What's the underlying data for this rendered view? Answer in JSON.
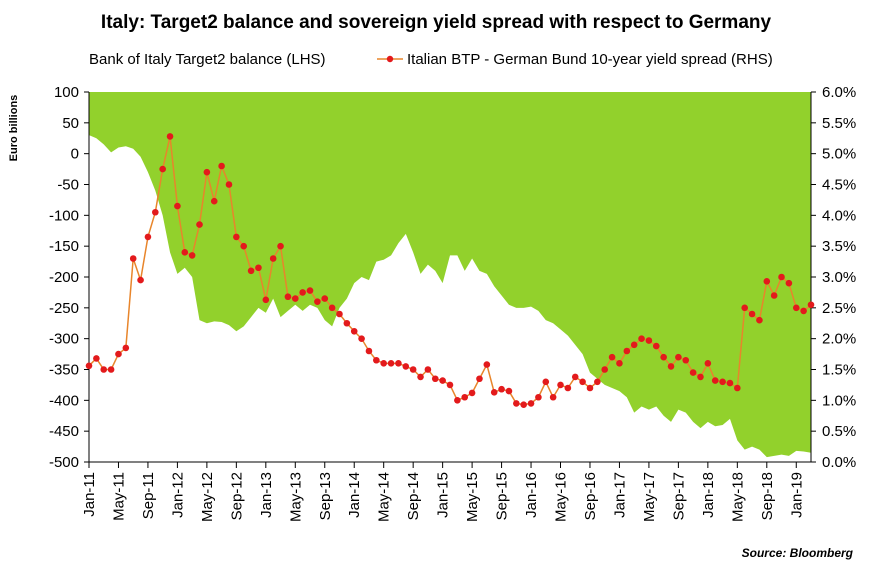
{
  "chart_data": {
    "type": "area+line",
    "title": "Italy: Target2 balance and sovereign yield spread with respect to Germany",
    "ylabel_left": "Euro billions",
    "ylabel_right": "",
    "source": "Source: Bloomberg",
    "left_axis": {
      "min": -500,
      "max": 100,
      "step": 50,
      "ticks": [
        "100",
        "50",
        "0",
        "-50",
        "-100",
        "-150",
        "-200",
        "-250",
        "-300",
        "-350",
        "-400",
        "-450",
        "-500"
      ]
    },
    "right_axis": {
      "min": 0,
      "max": 6,
      "step": 0.5,
      "ticks": [
        "6.0%",
        "5.5%",
        "5.0%",
        "4.5%",
        "4.0%",
        "3.5%",
        "3.0%",
        "2.5%",
        "2.0%",
        "1.5%",
        "1.0%",
        "0.5%",
        "0.0%"
      ]
    },
    "x_labels": [
      "Jan-11",
      "May-11",
      "Sep-11",
      "Jan-12",
      "May-12",
      "Sep-12",
      "Jan-13",
      "May-13",
      "Sep-13",
      "Jan-14",
      "May-14",
      "Sep-14",
      "Jan-15",
      "May-15",
      "Sep-15",
      "Jan-16",
      "May-16",
      "Sep-16",
      "Jan-17",
      "May-17",
      "Sep-17",
      "Jan-18",
      "May-18",
      "Sep-18",
      "Jan-19"
    ],
    "months": [
      "Jan-11",
      "Feb-11",
      "Mar-11",
      "Apr-11",
      "May-11",
      "Jun-11",
      "Jul-11",
      "Aug-11",
      "Sep-11",
      "Oct-11",
      "Nov-11",
      "Dec-11",
      "Jan-12",
      "Feb-12",
      "Mar-12",
      "Apr-12",
      "May-12",
      "Jun-12",
      "Jul-12",
      "Aug-12",
      "Sep-12",
      "Oct-12",
      "Nov-12",
      "Dec-12",
      "Jan-13",
      "Feb-13",
      "Mar-13",
      "Apr-13",
      "May-13",
      "Jun-13",
      "Jul-13",
      "Aug-13",
      "Sep-13",
      "Oct-13",
      "Nov-13",
      "Dec-13",
      "Jan-14",
      "Feb-14",
      "Mar-14",
      "Apr-14",
      "May-14",
      "Jun-14",
      "Jul-14",
      "Aug-14",
      "Sep-14",
      "Oct-14",
      "Nov-14",
      "Dec-14",
      "Jan-15",
      "Feb-15",
      "Mar-15",
      "Apr-15",
      "May-15",
      "Jun-15",
      "Jul-15",
      "Aug-15",
      "Sep-15",
      "Oct-15",
      "Nov-15",
      "Dec-15",
      "Jan-16",
      "Feb-16",
      "Mar-16",
      "Apr-16",
      "May-16",
      "Jun-16",
      "Jul-16",
      "Aug-16",
      "Sep-16",
      "Oct-16",
      "Nov-16",
      "Dec-16",
      "Jan-17",
      "Feb-17",
      "Mar-17",
      "Apr-17",
      "May-17",
      "Jun-17",
      "Jul-17",
      "Aug-17",
      "Sep-17",
      "Oct-17",
      "Nov-17",
      "Dec-17",
      "Jan-18",
      "Feb-18",
      "Mar-18",
      "Apr-18",
      "May-18",
      "Jun-18",
      "Jul-18",
      "Aug-18",
      "Sep-18",
      "Oct-18",
      "Nov-18",
      "Dec-18",
      "Jan-19",
      "Feb-19",
      "Mar-19"
    ],
    "series": [
      {
        "name": "Bank of Italy Target2 balance (LHS)",
        "kind": "area",
        "axis": "left",
        "color": "#92D12C",
        "values": [
          30,
          25,
          15,
          2,
          10,
          12,
          8,
          -5,
          -30,
          -60,
          -100,
          -160,
          -195,
          -185,
          -200,
          -270,
          -275,
          -272,
          -273,
          -278,
          -288,
          -280,
          -265,
          -250,
          -258,
          -235,
          -265,
          -255,
          -245,
          -255,
          -245,
          -250,
          -270,
          -280,
          -250,
          -235,
          -210,
          -200,
          -205,
          -175,
          -172,
          -165,
          -145,
          -130,
          -160,
          -195,
          -180,
          -190,
          -210,
          -165,
          -165,
          -190,
          -170,
          -190,
          -195,
          -215,
          -230,
          -245,
          -250,
          -250,
          -248,
          -255,
          -270,
          -275,
          -285,
          -295,
          -310,
          -325,
          -355,
          -365,
          -375,
          -380,
          -385,
          -395,
          -420,
          -410,
          -415,
          -410,
          -425,
          -435,
          -415,
          -420,
          -435,
          -445,
          -435,
          -442,
          -440,
          -430,
          -465,
          -480,
          -475,
          -480,
          -492,
          -490,
          -488,
          -490,
          -482,
          -483,
          -485
        ]
      },
      {
        "name": "Italian BTP - German Bund 10-year yield spread (RHS)",
        "kind": "line",
        "axis": "right",
        "color": "#E8852B",
        "marker_color": "#E31A1C",
        "values": [
          1.56,
          1.68,
          1.5,
          1.5,
          1.75,
          1.85,
          3.3,
          2.95,
          3.65,
          4.05,
          4.75,
          5.28,
          4.15,
          3.4,
          3.35,
          3.85,
          4.7,
          4.23,
          4.8,
          4.5,
          3.65,
          3.5,
          3.1,
          3.15,
          2.63,
          3.3,
          3.5,
          2.68,
          2.65,
          2.75,
          2.78,
          2.6,
          2.65,
          2.5,
          2.4,
          2.25,
          2.12,
          2.0,
          1.8,
          1.65,
          1.6,
          1.6,
          1.6,
          1.55,
          1.5,
          1.38,
          1.5,
          1.35,
          1.32,
          1.25,
          1.0,
          1.05,
          1.12,
          1.35,
          1.58,
          1.13,
          1.18,
          1.15,
          0.95,
          0.93,
          0.95,
          1.05,
          1.3,
          1.05,
          1.25,
          1.2,
          1.38,
          1.3,
          1.2,
          1.3,
          1.5,
          1.7,
          1.6,
          1.8,
          1.9,
          2.0,
          1.97,
          1.88,
          1.7,
          1.55,
          1.7,
          1.65,
          1.45,
          1.38,
          1.6,
          1.32,
          1.3,
          1.28,
          1.2,
          2.5,
          2.4,
          2.3,
          2.93,
          2.7,
          3.0,
          2.9,
          2.5,
          2.45,
          2.55
        ]
      }
    ]
  }
}
